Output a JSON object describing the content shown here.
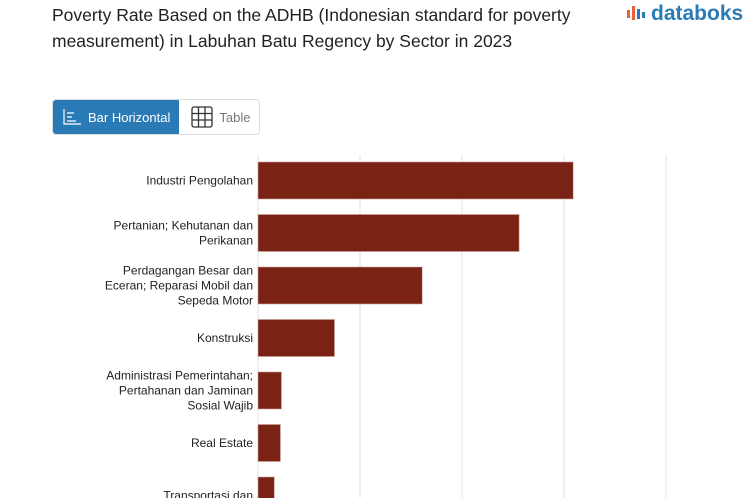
{
  "title": "Poverty Rate Based on the ADHB (Indonesian standard for poverty measurement) in Labuhan Batu Regency by Sector in 2023",
  "logo": {
    "text": "databoks"
  },
  "view_toggle": {
    "bar_label": "Bar Horizontal",
    "bar_icon": "bar-horizontal-icon",
    "table_label": "Table",
    "table_icon": "table-grid-icon",
    "selected": "Bar Horizontal"
  },
  "colors": {
    "bar": "#7a2214",
    "accent": "#2a7ab5",
    "grid": "#e0e0e0"
  },
  "chart_data": {
    "type": "bar",
    "orientation": "horizontal",
    "title": "Poverty Rate Based on the ADHB (Indonesian standard for poverty measurement) in Labuhan Batu Regency by Sector in 2023",
    "categories": [
      [
        "Industri Pengolahan"
      ],
      [
        "Pertanian; Kehutanan dan",
        "Perikanan"
      ],
      [
        "Perdagangan Besar dan",
        "Eceran; Reparasi Mobil dan",
        "Sepeda Motor"
      ],
      [
        "Konstruksi"
      ],
      [
        "Administrasi Pemerintahan;",
        "Pertahanan dan Jaminan",
        "Sosial Wajib"
      ],
      [
        "Real Estate"
      ],
      [
        "Transportasi dan"
      ]
    ],
    "values": [
      3.09,
      2.56,
      1.61,
      0.75,
      0.23,
      0.22,
      0.16
    ],
    "xlim": [
      0,
      4
    ],
    "grid": true,
    "tick_labels_visible": false
  }
}
